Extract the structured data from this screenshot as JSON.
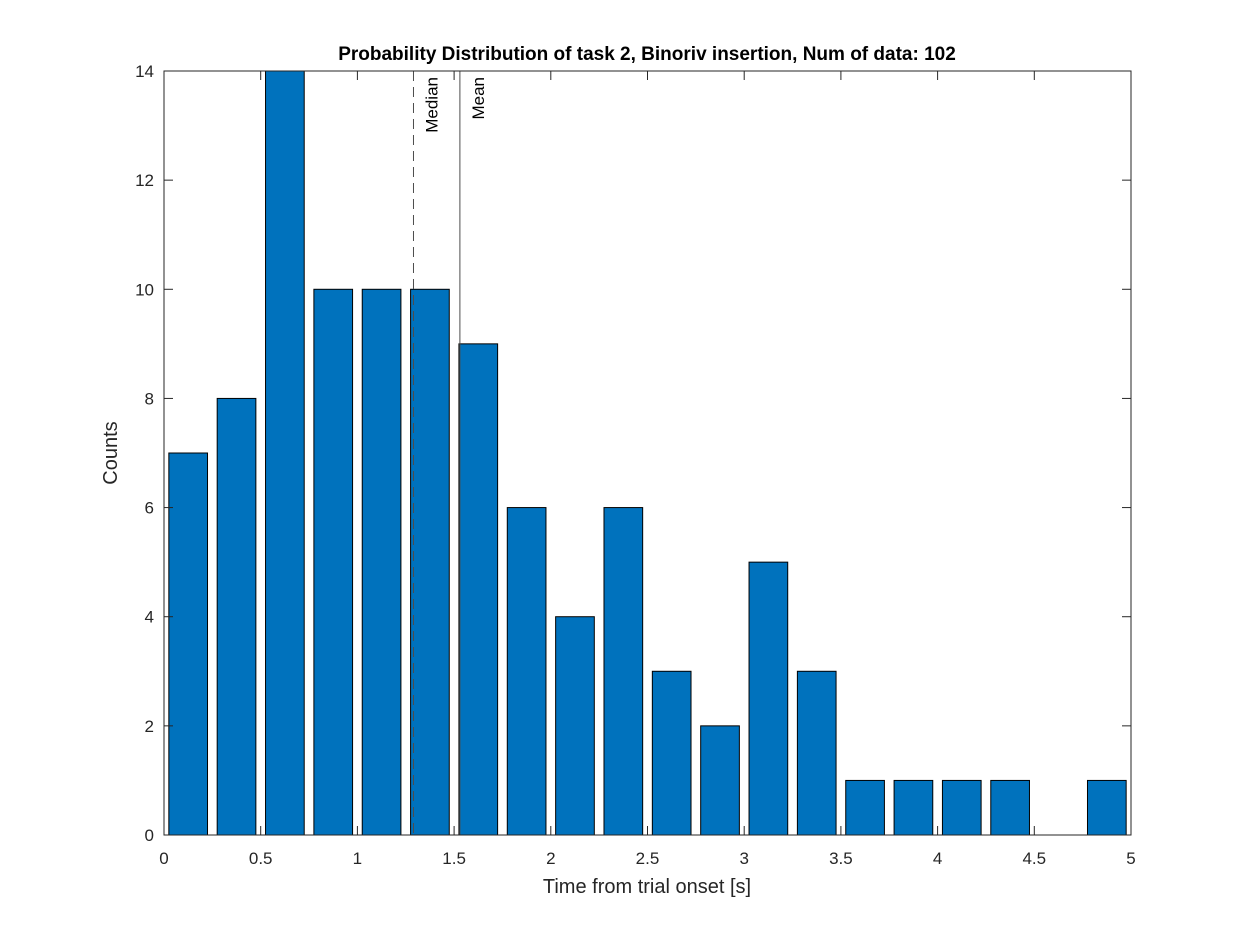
{
  "chart_data": {
    "type": "bar",
    "title": "Probability Distribution of task 2, Binoriv insertion, Num of data: 102",
    "xlabel": "Time from trial onset [s]",
    "ylabel": "Counts",
    "xlim": [
      0,
      5
    ],
    "ylim": [
      0,
      14
    ],
    "xticks": [
      0,
      0.5,
      1,
      1.5,
      2,
      2.5,
      3,
      3.5,
      4,
      4.5,
      5
    ],
    "xtick_labels": [
      "0",
      "0.5",
      "1",
      "1.5",
      "2",
      "2.5",
      "3",
      "3.5",
      "4",
      "4.5",
      "5"
    ],
    "yticks": [
      0,
      2,
      4,
      6,
      8,
      10,
      12,
      14
    ],
    "ytick_labels": [
      "0",
      "2",
      "4",
      "6",
      "8",
      "10",
      "12",
      "14"
    ],
    "bin_width": 0.25,
    "bin_centers": [
      0.125,
      0.375,
      0.625,
      0.875,
      1.125,
      1.375,
      1.625,
      1.875,
      2.125,
      2.375,
      2.625,
      2.875,
      3.125,
      3.375,
      3.625,
      3.875,
      4.125,
      4.375,
      4.625,
      4.875
    ],
    "values": [
      7,
      8,
      14,
      10,
      10,
      10,
      9,
      6,
      4,
      6,
      3,
      2,
      5,
      3,
      1,
      1,
      1,
      1,
      0,
      1
    ],
    "bar_color": "#0072BD",
    "reference_lines": [
      {
        "label": "Median",
        "x": 1.29,
        "style": "dashed",
        "color": "#4d4d4d"
      },
      {
        "label": "Mean",
        "x": 1.53,
        "style": "solid",
        "color": "#4d4d4d"
      }
    ],
    "grid": false,
    "box": true
  }
}
